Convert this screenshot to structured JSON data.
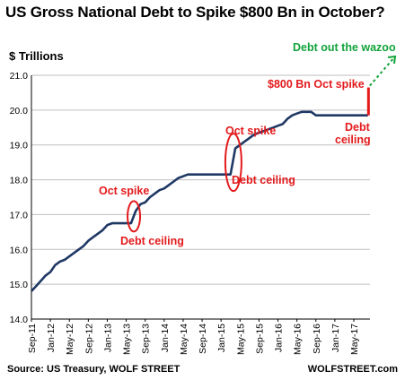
{
  "chart_data": {
    "type": "line",
    "title": "US Gross National Debt to Spike $800 Bn in October?",
    "ylabel": "$ Trillions",
    "source": "Source: US Treasury, WOLF STREET",
    "brand": "WOLFSTREET.com",
    "ylim": [
      14.0,
      21.0
    ],
    "yticks": [
      "14.0",
      "15.0",
      "16.0",
      "17.0",
      "18.0",
      "19.0",
      "20.0",
      "21.0"
    ],
    "xticks": [
      "Sep-11",
      "Jan-12",
      "May-12",
      "Sep-12",
      "Jan-13",
      "May-13",
      "Sep-13",
      "Jan-14",
      "May-14",
      "Sep-14",
      "Jan-15",
      "May-15",
      "Sep-15",
      "Jan-16",
      "May-16",
      "Sep-16",
      "Jan-17",
      "May-17"
    ],
    "grid": "horizontal",
    "series": [
      {
        "x": [
          0,
          1,
          2,
          3,
          4,
          5,
          6,
          7,
          8,
          9,
          10,
          11,
          12,
          13,
          14,
          15,
          16,
          17,
          18,
          19,
          20,
          21,
          22,
          23,
          24,
          25,
          26,
          27,
          28,
          29,
          30,
          31,
          32,
          33,
          34,
          35,
          36,
          37,
          38,
          39,
          40,
          41,
          42,
          43,
          44,
          45,
          46,
          47,
          48,
          49,
          50,
          51,
          52,
          53,
          54,
          55,
          56,
          57,
          58,
          59,
          60,
          61,
          62,
          63,
          64,
          65,
          66,
          67,
          68,
          69,
          70,
          71
        ],
        "values": [
          14.8,
          14.95,
          15.1,
          15.25,
          15.35,
          15.55,
          15.65,
          15.7,
          15.8,
          15.9,
          16.0,
          16.1,
          16.25,
          16.35,
          16.45,
          16.55,
          16.7,
          16.75,
          16.75,
          16.75,
          16.75,
          16.75,
          17.1,
          17.3,
          17.35,
          17.5,
          17.6,
          17.7,
          17.75,
          17.85,
          17.95,
          18.05,
          18.1,
          18.15,
          18.15,
          18.15,
          18.15,
          18.15,
          18.15,
          18.15,
          18.15,
          18.15,
          18.15,
          18.9,
          19.0,
          19.1,
          19.2,
          19.3,
          19.35,
          19.4,
          19.45,
          19.5,
          19.55,
          19.6,
          19.75,
          19.85,
          19.9,
          19.95,
          19.95,
          19.95,
          19.85,
          19.85,
          19.85,
          19.85,
          19.85,
          19.85,
          19.85,
          19.85,
          19.85,
          19.85,
          19.85,
          19.85
        ]
      }
    ],
    "annotations": {
      "oct_spike_1": "Oct spike",
      "debt_ceiling_1": "Debt ceiling",
      "oct_spike_2": "Oct spike",
      "debt_ceiling_2": "Debt ceiling",
      "spike_800": "$800 Bn Oct spike",
      "debt_ceiling_3a": "Debt",
      "debt_ceiling_3b": "ceiling",
      "wazoo": "Debt out the wazoo"
    },
    "colors": {
      "line": "#1f3864",
      "annotation": "#e31a1c",
      "wazoo": "#12a33a",
      "grid": "#bfbfbf"
    }
  }
}
